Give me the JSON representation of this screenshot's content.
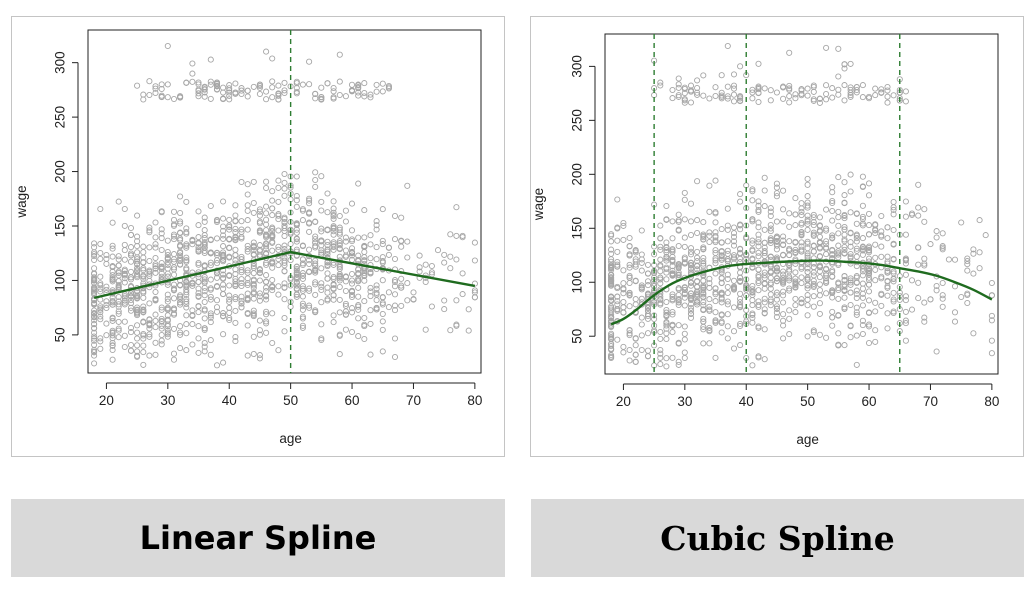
{
  "captions": {
    "left": "Linear Spline",
    "right": "Cubic Spline"
  },
  "chart_data": [
    {
      "type": "scatter",
      "title": "",
      "xlabel": "age",
      "ylabel": "wage",
      "xlim": [
        17,
        81
      ],
      "ylim": [
        15,
        330
      ],
      "xticks": [
        20,
        30,
        40,
        50,
        60,
        70,
        80
      ],
      "yticks": [
        50,
        100,
        150,
        200,
        250,
        300
      ],
      "grid": false,
      "knots": [
        50
      ],
      "points_color": "#a6a6a6",
      "fit_color": "#1f6b1f",
      "knot_color": "#2e7d32",
      "fit_type": "linear spline",
      "fit": {
        "x": [
          18,
          50,
          80
        ],
        "y": [
          84,
          126,
          95
        ]
      }
    },
    {
      "type": "scatter",
      "title": "",
      "xlabel": "age",
      "ylabel": "wage",
      "xlim": [
        17,
        81
      ],
      "ylim": [
        15,
        330
      ],
      "xticks": [
        20,
        30,
        40,
        50,
        60,
        70,
        80
      ],
      "yticks": [
        50,
        100,
        150,
        200,
        250,
        300
      ],
      "grid": false,
      "knots": [
        25,
        40,
        65
      ],
      "points_color": "#a6a6a6",
      "fit_color": "#1f6b1f",
      "knot_color": "#2e7d32",
      "fit_type": "cubic spline",
      "fit": {
        "x": [
          18,
          20,
          22,
          25,
          28,
          31,
          34,
          37,
          40,
          43,
          46,
          50,
          53,
          56,
          59,
          62,
          65,
          68,
          71,
          74,
          77,
          80
        ],
        "y": [
          61,
          66,
          74,
          88,
          99,
          106,
          111,
          115,
          117,
          118,
          119,
          120,
          120,
          119,
          118,
          116,
          113,
          110,
          106,
          100,
          93,
          84
        ]
      }
    }
  ]
}
